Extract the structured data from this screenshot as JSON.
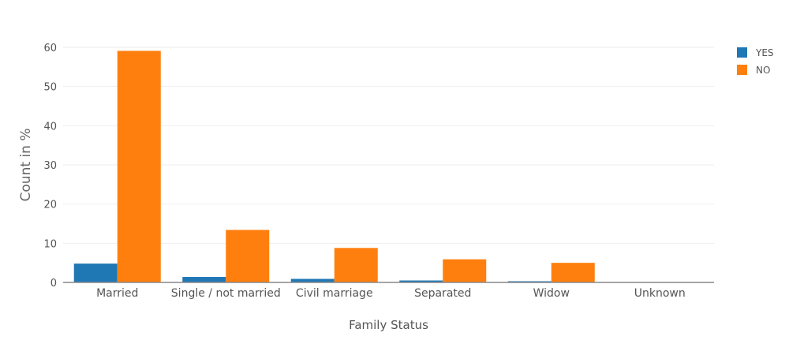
{
  "chart_data": {
    "type": "bar",
    "title": "",
    "xlabel": "Family Status",
    "ylabel": "Count in %",
    "ylim": [
      0,
      60
    ],
    "yticks": [
      0,
      10,
      20,
      30,
      40,
      50,
      60
    ],
    "categories": [
      "Married",
      "Single / not married",
      "Civil marriage",
      "Separated",
      "Widow",
      "Unknown"
    ],
    "series": [
      {
        "name": "YES",
        "color": "#1f77b4",
        "values": [
          4.8,
          1.4,
          0.9,
          0.5,
          0.3,
          0.0
        ]
      },
      {
        "name": "NO",
        "color": "#ff7f0e",
        "values": [
          59.1,
          13.4,
          8.8,
          5.9,
          5.0,
          0.0
        ]
      }
    ],
    "grid": true,
    "legend_position": "top-right"
  }
}
